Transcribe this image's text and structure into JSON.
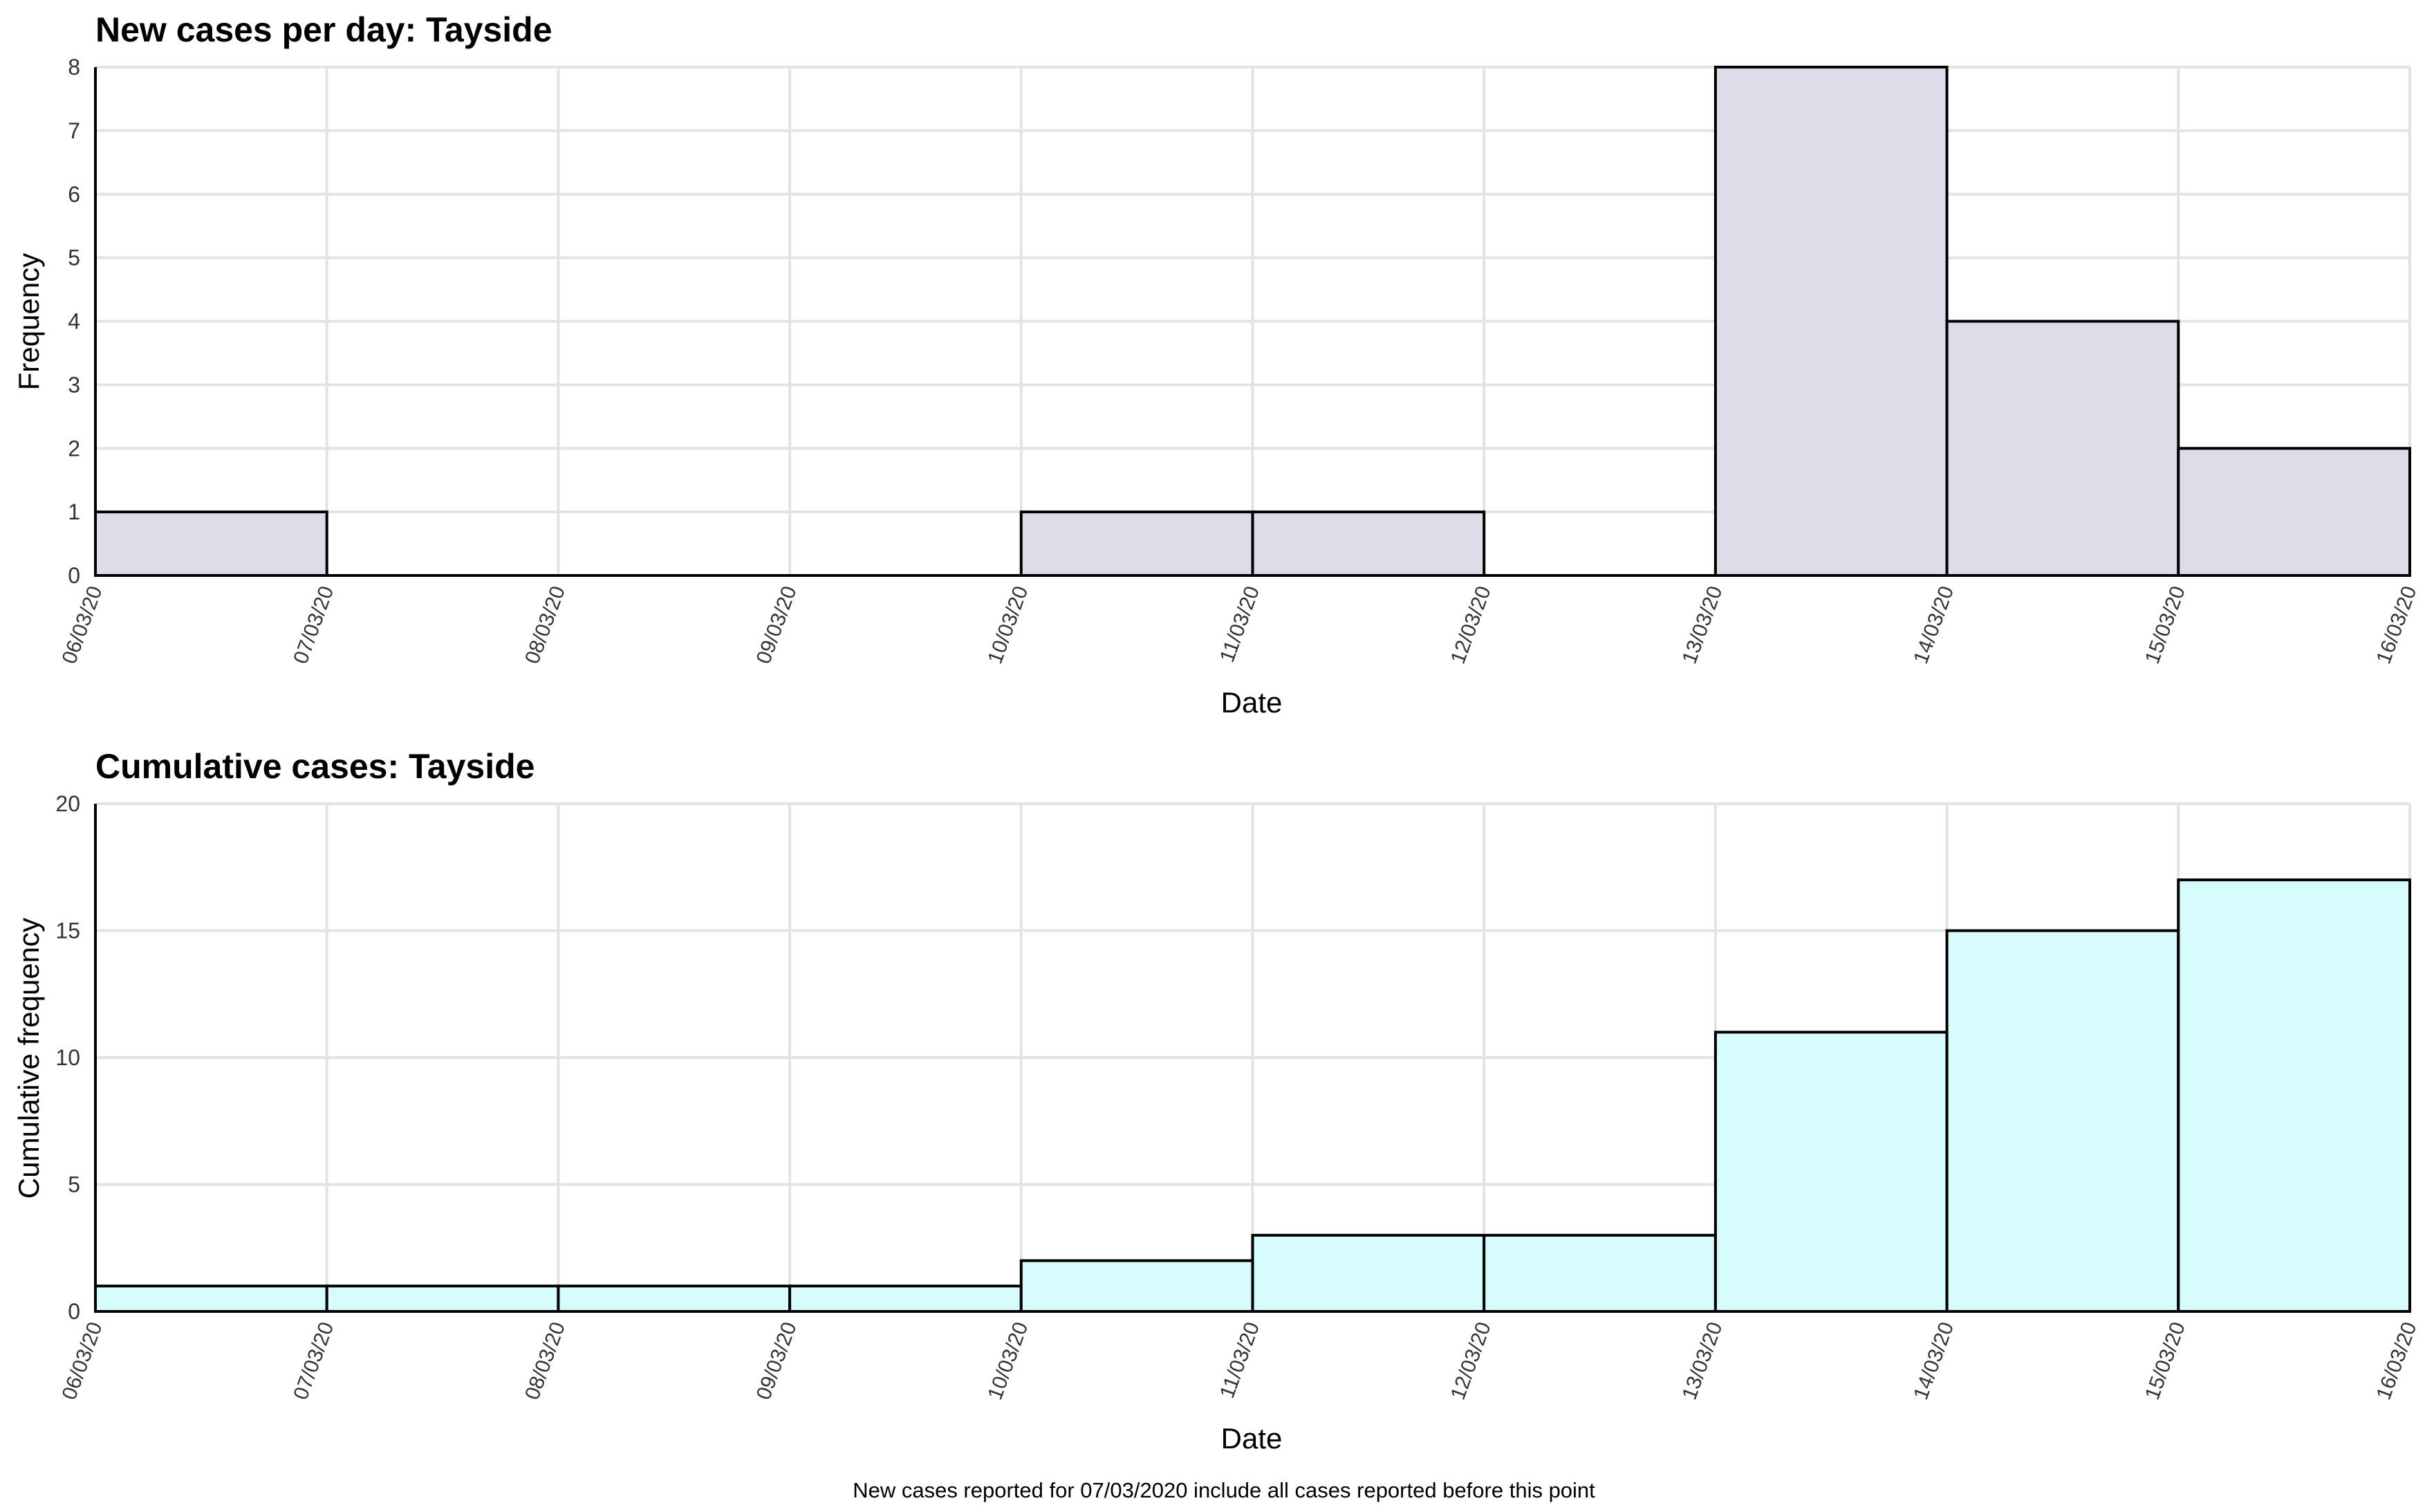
{
  "colors": {
    "daily_fill": "#e0dbe9",
    "cumulative_fill": "#d6fcfd",
    "bar_stroke": "#000000",
    "grid": "#e3e3e3"
  },
  "caption": "New cases reported for 07/03/2020 include all cases reported before this point",
  "chart_data": [
    {
      "type": "bar",
      "title": "New cases per day: Tayside",
      "xlabel": "Date",
      "ylabel": "Frequency",
      "x_ticks": [
        "06/03/20",
        "07/03/20",
        "08/03/20",
        "09/03/20",
        "10/03/20",
        "11/03/20",
        "12/03/20",
        "13/03/20",
        "14/03/20",
        "15/03/20",
        "16/03/20"
      ],
      "y_ticks": [
        0,
        1,
        2,
        3,
        4,
        5,
        6,
        7,
        8
      ],
      "ylim": [
        0,
        8
      ],
      "bins": [
        "06/03/20",
        "07/03/20",
        "08/03/20",
        "09/03/20",
        "10/03/20",
        "11/03/20",
        "12/03/20",
        "13/03/20",
        "14/03/20",
        "15/03/20"
      ],
      "values": [
        1,
        0,
        0,
        0,
        1,
        1,
        0,
        8,
        4,
        2
      ],
      "grid": true,
      "fill_color_key": "daily_fill"
    },
    {
      "type": "bar",
      "title": "Cumulative cases: Tayside",
      "xlabel": "Date",
      "ylabel": "Cumulative frequency",
      "x_ticks": [
        "06/03/20",
        "07/03/20",
        "08/03/20",
        "09/03/20",
        "10/03/20",
        "11/03/20",
        "12/03/20",
        "13/03/20",
        "14/03/20",
        "15/03/20",
        "16/03/20"
      ],
      "y_ticks": [
        0,
        5,
        10,
        15,
        20
      ],
      "ylim": [
        0,
        20
      ],
      "bins": [
        "06/03/20",
        "07/03/20",
        "08/03/20",
        "09/03/20",
        "10/03/20",
        "11/03/20",
        "12/03/20",
        "13/03/20",
        "14/03/20",
        "15/03/20"
      ],
      "values": [
        1,
        1,
        1,
        1,
        2,
        3,
        3,
        11,
        15,
        17
      ],
      "grid": true,
      "fill_color_key": "cumulative_fill"
    }
  ]
}
